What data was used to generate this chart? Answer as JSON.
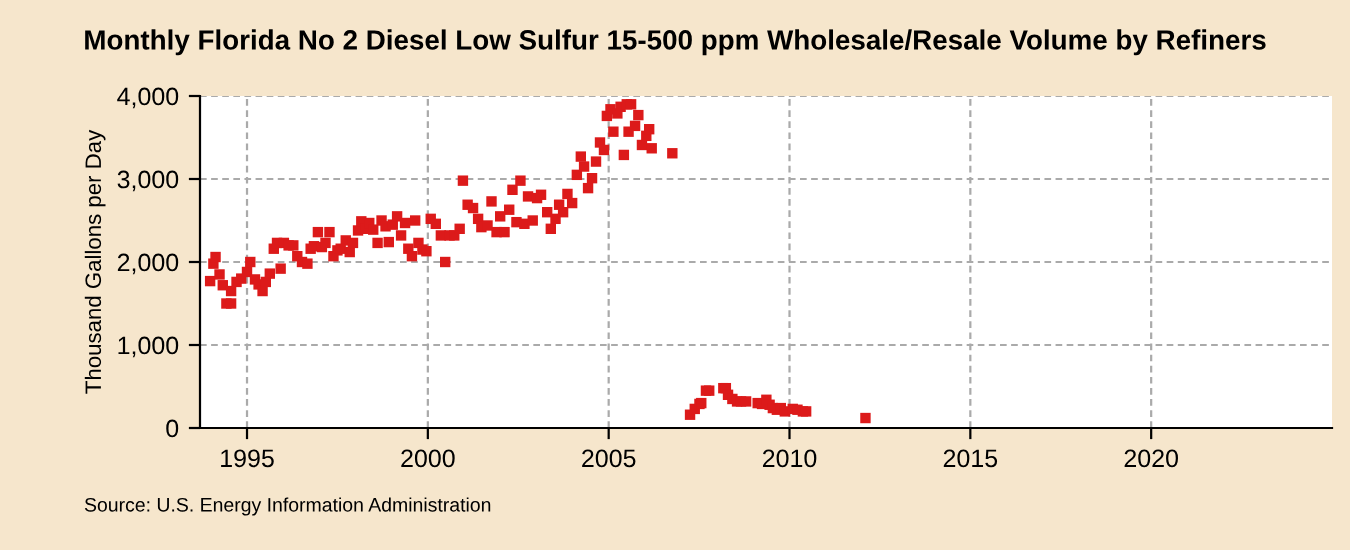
{
  "chart_data": {
    "type": "scatter",
    "title": "Monthly Florida No 2 Diesel Low Sulfur 15-500 ppm Wholesale/Resale Volume by Refiners",
    "ylabel": "Thousand Gallons per Day",
    "annotations": [
      "Source: U.S. Energy Information Administration"
    ],
    "x": [
      1993.98,
      1994.07,
      1994.13,
      1994.24,
      1994.33,
      1994.43,
      1994.56,
      1994.56,
      1994.71,
      1994.84,
      1995.0,
      1995.09,
      1995.22,
      1995.32,
      1995.43,
      1995.52,
      1995.63,
      1995.74,
      1995.83,
      1995.93,
      1996.02,
      1996.15,
      1996.28,
      1996.39,
      1996.52,
      1996.67,
      1996.76,
      1996.85,
      1996.96,
      1997.07,
      1997.17,
      1997.28,
      1997.39,
      1997.5,
      1997.59,
      1997.73,
      1997.84,
      1997.93,
      1998.07,
      1998.16,
      1998.27,
      1998.38,
      1998.49,
      1998.61,
      1998.72,
      1998.83,
      1998.92,
      1999.03,
      1999.15,
      1999.26,
      1999.37,
      1999.46,
      1999.56,
      1999.65,
      1999.74,
      1999.85,
      1999.96,
      2000.08,
      2000.22,
      2000.36,
      2000.48,
      2000.6,
      2000.73,
      2000.88,
      2000.97,
      2001.1,
      2001.25,
      2001.39,
      2001.48,
      2001.65,
      2001.76,
      2001.9,
      2002.0,
      2002.12,
      2002.25,
      2002.34,
      2002.45,
      2002.56,
      2002.67,
      2002.77,
      2002.9,
      2003.02,
      2003.13,
      2003.3,
      2003.4,
      2003.53,
      2003.63,
      2003.74,
      2003.86,
      2003.99,
      2004.12,
      2004.23,
      2004.32,
      2004.43,
      2004.54,
      2004.65,
      2004.76,
      2004.87,
      2004.95,
      2005.05,
      2005.13,
      2005.24,
      2005.33,
      2005.42,
      2005.5,
      2005.55,
      2005.62,
      2005.73,
      2005.82,
      2005.92,
      2006.04,
      2006.12,
      2006.19,
      2006.76,
      2007.25,
      2007.38,
      2007.51,
      2007.56,
      2007.69,
      2007.78,
      2008.17,
      2008.24,
      2008.3,
      2008.42,
      2008.55,
      2008.66,
      2008.8,
      2009.12,
      2009.24,
      2009.36,
      2009.45,
      2009.54,
      2009.65,
      2009.76,
      2009.87,
      2010.09,
      2010.22,
      2010.37,
      2010.46,
      2012.1
    ],
    "values": [
      1770,
      1980,
      2060,
      1850,
      1720,
      1500,
      1500,
      1650,
      1760,
      1800,
      1880,
      2000,
      1790,
      1730,
      1650,
      1760,
      1860,
      2160,
      2230,
      1920,
      2230,
      2200,
      2200,
      2070,
      2000,
      1980,
      2160,
      2190,
      2360,
      2180,
      2230,
      2360,
      2070,
      2140,
      2160,
      2260,
      2120,
      2230,
      2380,
      2490,
      2400,
      2470,
      2390,
      2230,
      2500,
      2430,
      2240,
      2450,
      2550,
      2320,
      2470,
      2160,
      2070,
      2500,
      2230,
      2150,
      2130,
      2520,
      2460,
      2320,
      2000,
      2320,
      2320,
      2400,
      2980,
      2690,
      2650,
      2520,
      2420,
      2440,
      2730,
      2360,
      2550,
      2360,
      2630,
      2870,
      2480,
      2980,
      2460,
      2790,
      2500,
      2770,
      2810,
      2600,
      2400,
      2520,
      2690,
      2600,
      2820,
      2710,
      3050,
      3270,
      3150,
      2890,
      3010,
      3210,
      3440,
      3350,
      3760,
      3840,
      3570,
      3790,
      3870,
      3290,
      3900,
      3570,
      3900,
      3640,
      3770,
      3410,
      3520,
      3600,
      3370,
      3310,
      160,
      230,
      290,
      300,
      450,
      450,
      480,
      480,
      400,
      350,
      320,
      320,
      320,
      300,
      290,
      340,
      280,
      240,
      220,
      240,
      200,
      230,
      220,
      200,
      200,
      120
    ],
    "color": "#dc1a1a",
    "marker": "square",
    "xlim": [
      1993.7,
      2025
    ],
    "xticks": [
      1995,
      2000,
      2005,
      2010,
      2015,
      2020
    ],
    "ylim": [
      0,
      4000
    ],
    "yticks": [
      {
        "value": 0,
        "label": "0"
      },
      {
        "value": 1000,
        "label": "1,000"
      },
      {
        "value": 2000,
        "label": "2,000"
      },
      {
        "value": 3000,
        "label": "3,000"
      },
      {
        "value": 4000,
        "label": "4,000"
      }
    ],
    "grid": true
  }
}
